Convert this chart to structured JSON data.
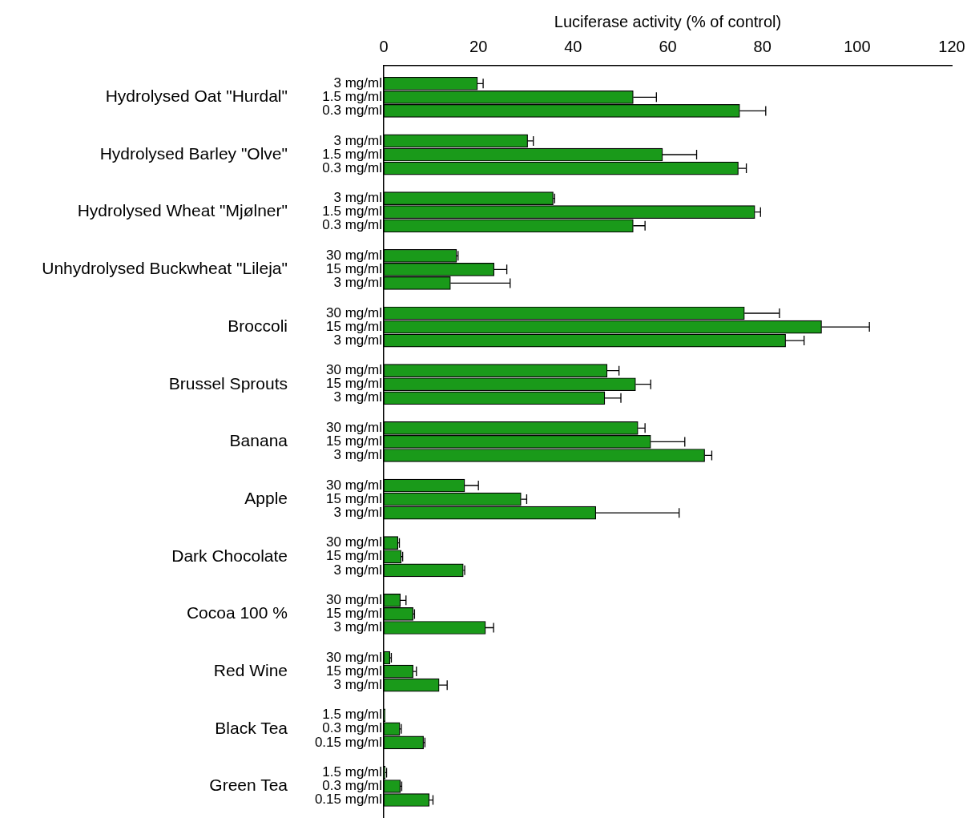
{
  "chart_data": {
    "type": "bar",
    "orientation": "horizontal",
    "xlabel": "Luciferase activity (% of control)",
    "categories": [
      "3 mg/ml",
      "1.5 mg/ml",
      "0.3 mg/ml",
      "3 mg/ml",
      "1.5 mg/ml",
      "0.3 mg/ml",
      "3 mg/ml",
      "1.5 mg/ml",
      "0.3 mg/ml",
      "30 mg/ml",
      "15 mg/ml",
      "3 mg/ml",
      "30 mg/ml",
      "15 mg/ml",
      "3 mg/ml",
      "30 mg/ml",
      "15 mg/ml",
      "3 mg/ml",
      "30 mg/ml",
      "15 mg/ml",
      "3 mg/ml",
      "30 mg/ml",
      "15 mg/ml",
      "3 mg/ml",
      "30 mg/ml",
      "15 mg/ml",
      "3 mg/ml",
      "30 mg/ml",
      "15 mg/ml",
      "3 mg/ml",
      "30 mg/ml",
      "15 mg/ml",
      "3 mg/ml",
      "1.5 mg/ml",
      "0.3 mg/ml",
      "0.15 mg/ml",
      "1.5 mg/ml",
      "0.3 mg/ml",
      "0.15 mg/ml"
    ],
    "annotations": [
      "Hydrolysed Oat \"Hurdal\"",
      "Hydrolysed Barley \"Olve\"",
      "Hydrolysed Wheat \"Mjølner\"",
      "Unhydrolysed Buckwheat \"Lileja\"",
      "Broccoli",
      "Brussel Sprouts",
      "Banana",
      "Apple",
      "Dark Chocolate",
      "Cocoa 100 %",
      "Red Wine",
      "Black Tea",
      "Green Tea"
    ],
    "color": "#1a9a1a",
    "values": [
      19.8,
      52.7,
      75.2,
      30.4,
      58.9,
      74.9,
      35.8,
      78.4,
      52.7,
      15.4,
      23.3,
      14.1,
      76.2,
      92.5,
      84.9,
      47.2,
      53.2,
      46.7,
      53.7,
      56.4,
      67.8,
      17.1,
      29.0,
      44.8,
      3.0,
      3.7,
      16.8,
      3.5,
      6.2,
      21.5,
      1.3,
      6.2,
      11.7,
      0.3,
      3.4,
      8.4,
      0.3,
      3.5,
      9.6
    ],
    "errors": [
      [
        19.8,
        21.0
      ],
      [
        52.7,
        57.6
      ],
      [
        75.2,
        80.7
      ],
      [
        30.4,
        31.6
      ],
      [
        58.9,
        66.1
      ],
      [
        74.9,
        76.6
      ],
      [
        35.8,
        36.1
      ],
      [
        78.4,
        79.6
      ],
      [
        52.7,
        55.2
      ],
      [
        15.4,
        15.7
      ],
      [
        23.3,
        26.0
      ],
      [
        14.1,
        26.7
      ],
      [
        76.2,
        83.6
      ],
      [
        92.5,
        102.6
      ],
      [
        84.9,
        88.8
      ],
      [
        47.2,
        49.7
      ],
      [
        53.2,
        56.4
      ],
      [
        46.7,
        50.1
      ],
      [
        53.7,
        55.2
      ],
      [
        56.4,
        63.6
      ],
      [
        67.8,
        69.3
      ],
      [
        17.1,
        20.0
      ],
      [
        29.0,
        30.2
      ],
      [
        44.8,
        62.4
      ],
      [
        3.0,
        3.3
      ],
      [
        3.7,
        4.0
      ],
      [
        16.8,
        17.1
      ],
      [
        3.5,
        4.7
      ],
      [
        6.2,
        6.5
      ],
      [
        21.5,
        23.2
      ],
      [
        1.3,
        1.6
      ],
      [
        6.2,
        6.9
      ],
      [
        11.7,
        13.4
      ],
      null,
      [
        3.4,
        3.7
      ],
      [
        8.4,
        8.7
      ],
      [
        0.3,
        0.6
      ],
      [
        3.5,
        3.8
      ],
      [
        9.6,
        10.4
      ]
    ],
    "xlim": [
      0,
      120
    ],
    "xticks": [
      0,
      20,
      40,
      60,
      80,
      100,
      120
    ],
    "grid": false,
    "legend": false
  }
}
